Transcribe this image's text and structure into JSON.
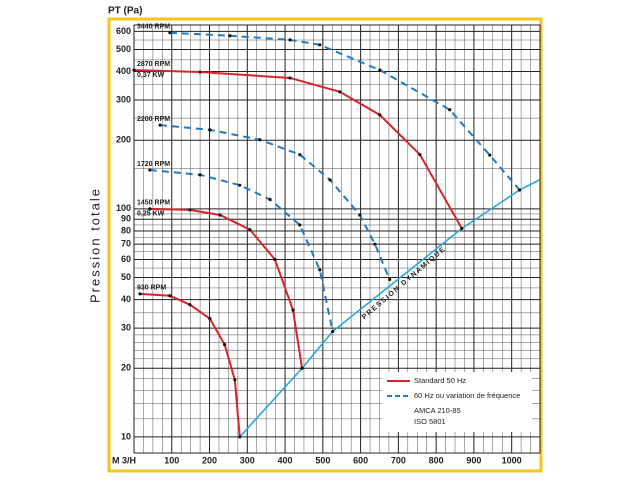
{
  "chart_data": {
    "type": "line",
    "y_title": "PT (Pa)",
    "y_label": "Pression totale",
    "x_label": "M 3/H",
    "log_y": true,
    "grid": true,
    "xlim": [
      0,
      1075
    ],
    "ylim": [
      8.5,
      640
    ],
    "xticks": [
      100,
      200,
      300,
      400,
      500,
      600,
      700,
      800,
      900,
      1000
    ],
    "yticks": [
      10,
      20,
      30,
      40,
      50,
      60,
      70,
      80,
      90,
      100,
      200,
      300,
      400,
      500,
      600
    ],
    "x_minor_ticks": [
      25,
      50,
      75,
      125,
      150,
      175,
      225,
      250,
      275,
      325,
      350,
      375,
      425,
      450,
      475,
      525,
      550,
      575,
      625,
      650,
      675,
      725,
      750,
      775,
      825,
      850,
      875,
      925,
      950,
      975,
      1025,
      1050
    ],
    "y_minor_ticks": [
      12,
      14,
      16,
      18,
      22,
      24,
      26,
      28,
      35,
      45,
      55,
      65,
      75,
      85,
      95,
      150,
      250,
      350,
      450,
      550
    ],
    "series": [
      {
        "name": "3440 RPM",
        "color": "#1f7bc4",
        "dashed": true,
        "x": [
          95,
          254,
          413,
          492,
          651,
          836,
          942,
          1021
        ],
        "values": [
          592,
          574,
          551,
          524,
          406,
          272,
          172,
          121
        ]
      },
      {
        "name": "2870 RPM",
        "power": "0,37 KW",
        "color": "#d9232a",
        "dashed": false,
        "x": [
          0,
          175,
          413,
          545,
          651,
          757,
          868
        ],
        "values": [
          406,
          398,
          375,
          326,
          258,
          173,
          82
        ]
      },
      {
        "name": "2200 RPM",
        "color": "#1f7bc4",
        "dashed": true,
        "x": [
          69,
          201,
          333,
          439,
          519,
          598,
          638,
          677
        ],
        "values": [
          233,
          222,
          201,
          173,
          134,
          94,
          70,
          49
        ]
      },
      {
        "name": "1720 RPM",
        "color": "#1f7bc4",
        "dashed": true,
        "x": [
          42,
          175,
          280,
          360,
          439,
          492,
          526
        ],
        "values": [
          148,
          141,
          127,
          110,
          85,
          54,
          29
        ]
      },
      {
        "name": "1450 RPM",
        "power": "0,25 KW",
        "color": "#d9232a",
        "dashed": false,
        "x": [
          42,
          148,
          228,
          307,
          373,
          421,
          445
        ],
        "values": [
          100,
          99,
          94,
          81,
          60,
          36,
          20
        ]
      },
      {
        "name": "930 RPM",
        "color": "#d9232a",
        "dashed": false,
        "x": [
          16,
          95,
          148,
          201,
          240,
          267,
          280
        ],
        "values": [
          42.4,
          41.6,
          38,
          33,
          25.4,
          17.8,
          10
        ]
      }
    ],
    "system_line": {
      "name": "PRESSION DYNAMIQUE",
      "color": "#2aa6dc",
      "x": [
        280,
        445,
        526,
        868,
        1021,
        1074
      ],
      "values": [
        10,
        20,
        29,
        82,
        121,
        134
      ]
    },
    "legend": [
      {
        "label": "Standard 50 Hz",
        "color": "#d9232a",
        "dashed": false
      },
      {
        "label": "60 Hz ou variation de fréquence",
        "color": "#1f7bc4",
        "dashed": true
      }
    ],
    "notes": [
      "AMCA 210-85",
      "ISO 5801"
    ]
  }
}
